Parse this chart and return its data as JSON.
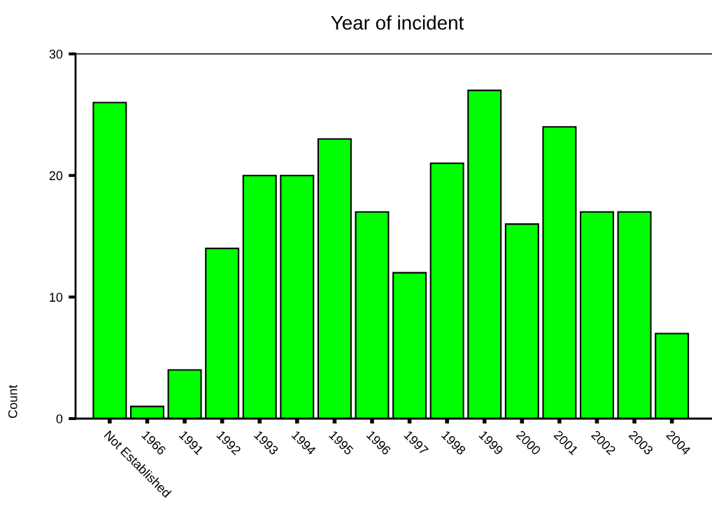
{
  "chart_data": {
    "type": "bar",
    "title": "Year of incident",
    "ylabel": "Count",
    "categories": [
      "Not Established",
      "1966",
      "1991",
      "1992",
      "1993",
      "1994",
      "1995",
      "1996",
      "1997",
      "1998",
      "1999",
      "2000",
      "2001",
      "2002",
      "2003",
      "2004"
    ],
    "values": [
      26,
      1,
      4,
      14,
      20,
      20,
      23,
      17,
      12,
      21,
      27,
      16,
      24,
      17,
      17,
      7
    ],
    "color": "#00ff00",
    "ylim": [
      0,
      30
    ],
    "yticks": [
      0,
      10,
      20,
      30
    ],
    "grid": false,
    "legend": false
  }
}
